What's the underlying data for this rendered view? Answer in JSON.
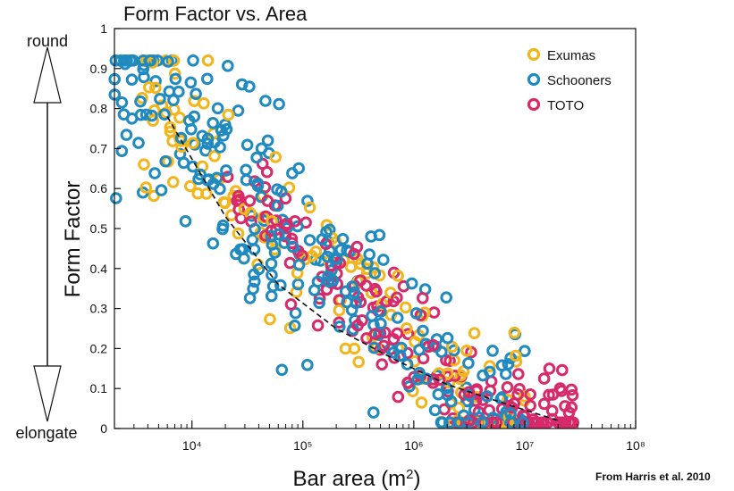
{
  "chart_data": {
    "type": "scatter",
    "title": "Form Factor vs. Area",
    "xlabel": "Bar area (m²)",
    "ylabel": "Form Factor",
    "xscale": "log",
    "xlim": [
      2000,
      100000000
    ],
    "ylim": [
      0,
      1
    ],
    "xticks": [
      "10⁴",
      "10⁵",
      "10⁶",
      "10⁷",
      "10⁸"
    ],
    "yticks": [
      "0",
      "0.1",
      "0.2",
      "0.3",
      "0.4",
      "0.5",
      "0.6",
      "0.7",
      "0.8",
      "0.9",
      "1"
    ],
    "legend_position": "top-right",
    "grid": false,
    "series": [
      {
        "name": "Exumas",
        "color": "#f2b61c"
      },
      {
        "name": "Schooners",
        "color": "#1f8ac0"
      },
      {
        "name": "TOTO",
        "color": "#d62a6b"
      }
    ],
    "trend": {
      "style": "dashed",
      "points": [
        [
          6000,
          0.78
        ],
        [
          20000,
          0.53
        ],
        [
          60000,
          0.36
        ],
        [
          200000,
          0.25
        ],
        [
          700000,
          0.17
        ],
        [
          2000000,
          0.11
        ],
        [
          7000000,
          0.06
        ],
        [
          20000000,
          0.02
        ]
      ]
    }
  },
  "annotations": {
    "top": "round",
    "bottom": "elongate",
    "credit": "From Harris et al. 2010"
  }
}
